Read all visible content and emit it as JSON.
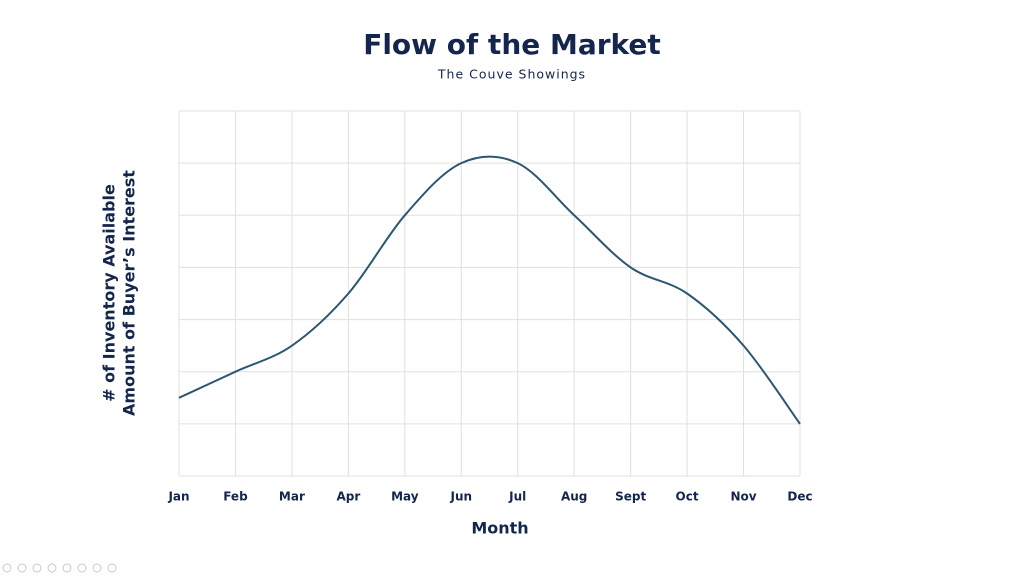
{
  "chart_data": {
    "type": "line",
    "title": "Flow of the Market",
    "subtitle": "The Couve Showings",
    "x_label": "Month",
    "y_label": [
      "# of Inventory Available",
      "Amount of Buyer’s Interest"
    ],
    "categories": [
      "Jan",
      "Feb",
      "Mar",
      "Apr",
      "May",
      "Jun",
      "Jul",
      "Aug",
      "Sept",
      "Oct",
      "Nov",
      "Dec"
    ],
    "values": [
      1.5,
      2,
      2.5,
      3.5,
      5,
      6,
      6,
      5,
      4,
      3.5,
      2.5,
      1
    ],
    "color": "#2b5870",
    "smooth": true,
    "ylim": [
      0,
      7
    ],
    "yticks": [
      0,
      1,
      2,
      3,
      4,
      5,
      6,
      7
    ],
    "grid": true
  }
}
